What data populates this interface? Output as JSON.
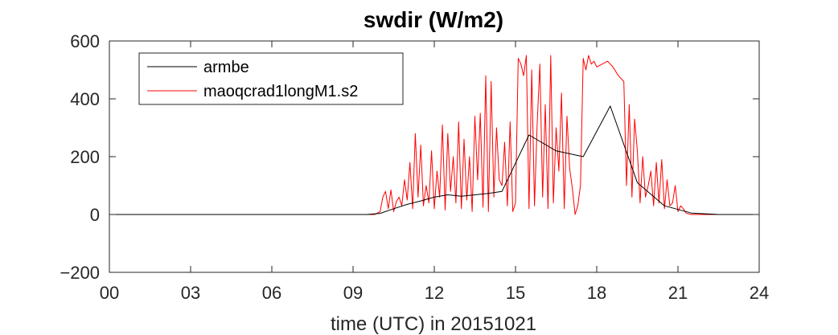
{
  "chart_data": {
    "type": "line",
    "title": "swdir  (W/m2)",
    "xlabel": "time (UTC) in 20151021",
    "ylabel": "",
    "xlim": [
      0,
      24
    ],
    "ylim": [
      -200,
      600
    ],
    "xticks": [
      0,
      3,
      6,
      9,
      12,
      15,
      18,
      21,
      24
    ],
    "xtick_labels": [
      "00",
      "03",
      "06",
      "09",
      "12",
      "15",
      "18",
      "21",
      "24"
    ],
    "yticks": [
      -200,
      0,
      200,
      400,
      600
    ],
    "ytick_labels": [
      "−200",
      "0",
      "200",
      "400",
      "600"
    ],
    "grid": false,
    "legend_position": "top-left",
    "series": [
      {
        "name": "armbe",
        "color": "#000000",
        "x": [
          0,
          1,
          2,
          3,
          4,
          5,
          6,
          7,
          8,
          9,
          9.5,
          10,
          10.5,
          11,
          11.5,
          12,
          12.5,
          13,
          13.5,
          14,
          14.5,
          15.5,
          16.5,
          17.5,
          18.5,
          19.5,
          20.5,
          21.5,
          22.5,
          23.5,
          24
        ],
        "values": [
          0,
          0,
          0,
          0,
          0,
          0,
          0,
          0,
          0,
          0,
          0,
          4,
          20,
          35,
          47,
          60,
          68,
          63,
          68,
          73,
          80,
          275,
          220,
          200,
          375,
          110,
          30,
          5,
          0,
          0,
          0
        ]
      },
      {
        "name": "maoqcrad1longM1.s2",
        "color": "#ff0000",
        "x": [
          0,
          9.8,
          10,
          10.1,
          10.2,
          10.3,
          10.4,
          10.5,
          10.6,
          10.7,
          10.8,
          10.9,
          11.0,
          11.1,
          11.2,
          11.3,
          11.4,
          11.5,
          11.6,
          11.7,
          11.8,
          11.9,
          12.0,
          12.1,
          12.2,
          12.3,
          12.4,
          12.5,
          12.6,
          12.7,
          12.8,
          12.9,
          13.0,
          13.1,
          13.2,
          13.3,
          13.4,
          13.5,
          13.6,
          13.7,
          13.8,
          13.9,
          14.0,
          14.1,
          14.2,
          14.3,
          14.4,
          14.5,
          14.6,
          14.7,
          14.8,
          14.9,
          15.0,
          15.1,
          15.2,
          15.3,
          15.4,
          15.5,
          15.6,
          15.7,
          15.8,
          15.9,
          16.0,
          16.1,
          16.2,
          16.3,
          16.4,
          16.5,
          16.6,
          16.7,
          16.8,
          16.9,
          17.0,
          17.1,
          17.2,
          17.3,
          17.4,
          17.5,
          17.6,
          17.7,
          17.8,
          17.9,
          18.0,
          18.2,
          18.4,
          18.6,
          18.8,
          19.0,
          19.1,
          19.2,
          19.3,
          19.4,
          19.5,
          19.6,
          19.7,
          19.8,
          19.9,
          20.0,
          20.1,
          20.2,
          20.3,
          20.4,
          20.5,
          20.6,
          20.7,
          20.8,
          20.9,
          21.0,
          21.1,
          21.2,
          21.3,
          21.4,
          21.5,
          22,
          23,
          24
        ],
        "values": [
          0,
          0,
          10,
          60,
          80,
          20,
          85,
          10,
          45,
          60,
          30,
          120,
          50,
          180,
          20,
          280,
          60,
          240,
          30,
          100,
          40,
          220,
          20,
          150,
          60,
          310,
          15,
          280,
          80,
          200,
          40,
          320,
          20,
          260,
          50,
          200,
          10,
          340,
          120,
          350,
          25,
          480,
          10,
          460,
          60,
          300,
          120,
          100,
          250,
          30,
          320,
          10,
          40,
          540,
          520,
          480,
          550,
          20,
          500,
          30,
          310,
          520,
          60,
          380,
          20,
          550,
          40,
          300,
          150,
          420,
          20,
          340,
          160,
          90,
          0,
          30,
          100,
          540,
          500,
          550,
          520,
          530,
          510,
          520,
          530,
          510,
          480,
          460,
          100,
          380,
          60,
          330,
          220,
          40,
          200,
          60,
          100,
          150,
          30,
          180,
          40,
          190,
          20,
          120,
          30,
          40,
          100,
          10,
          30,
          20,
          5,
          2,
          0,
          0,
          0,
          0
        ]
      }
    ]
  }
}
